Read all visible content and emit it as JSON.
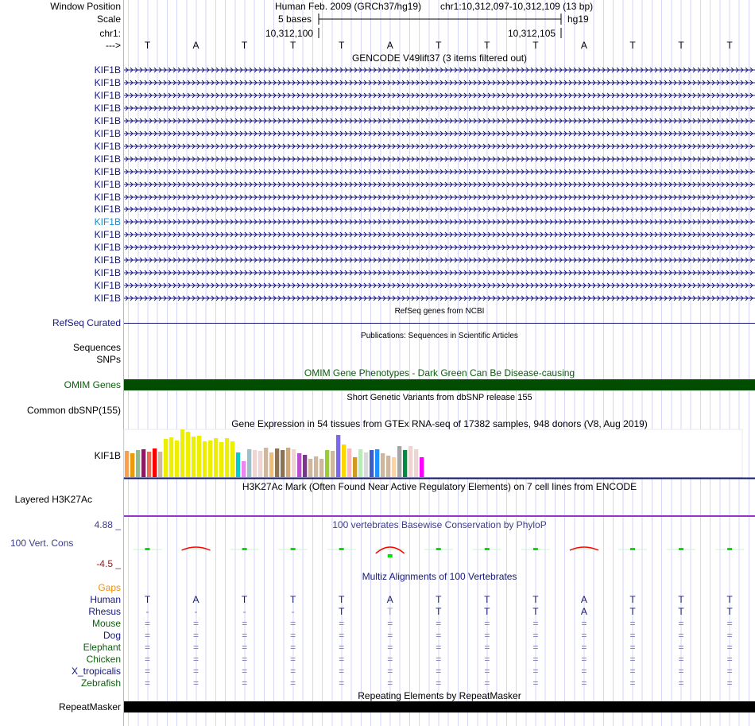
{
  "header": {
    "window_position_label": "Window Position",
    "assembly": "Human Feb. 2009 (GRCh37/hg19)",
    "position": "chr1:10,312,097-10,312,109 (13 bp)",
    "scale_label": "Scale",
    "scale_value": "5 bases",
    "scale_db": "hg19",
    "chrom_label": "chr1:",
    "tick_left": "10,312,100",
    "tick_right": "10,312,105",
    "strand_label": "--->",
    "bases": [
      "T",
      "A",
      "T",
      "T",
      "T",
      "A",
      "T",
      "T",
      "T",
      "A",
      "T",
      "T",
      "T"
    ]
  },
  "gencode": {
    "title": "GENCODE V49lift37 (3 items filtered out)",
    "genes": [
      "KIF1B",
      "KIF1B",
      "KIF1B",
      "KIF1B",
      "KIF1B",
      "KIF1B",
      "KIF1B",
      "KIF1B",
      "KIF1B",
      "KIF1B",
      "KIF1B",
      "KIF1B",
      "KIF1B",
      "KIF1B",
      "KIF1B",
      "KIF1B",
      "KIF1B",
      "KIF1B",
      "KIF1B"
    ],
    "highlighted_index": 12
  },
  "refseq": {
    "title": "RefSeq genes from NCBI",
    "label": "RefSeq Curated"
  },
  "publications": {
    "title": "Publications: Sequences in Scientific Articles",
    "label1": "Sequences",
    "label2": "SNPs"
  },
  "omim": {
    "title": "OMIM Gene Phenotypes - Dark Green Can Be Disease-causing",
    "label": "OMIM Genes",
    "color": "#004d00"
  },
  "dbsnp": {
    "title": "Short Genetic Variants from dbSNP release 155",
    "label": "Common dbSNP(155)"
  },
  "gtex": {
    "title": "Gene Expression in 54 tissues from GTEx RNA-seq of 17382 samples, 948 donors (V8, Aug 2019)",
    "label": "KIF1B",
    "values": [
      33,
      30,
      34,
      35,
      32,
      36,
      32,
      48,
      50,
      46,
      60,
      57,
      51,
      52,
      45,
      46,
      49,
      44,
      49,
      45,
      31,
      20,
      35,
      34,
      33,
      37,
      31,
      36,
      34,
      37,
      35,
      30,
      28,
      23,
      26,
      23,
      34,
      33,
      53,
      41,
      36,
      25,
      35,
      31,
      34,
      35,
      30,
      27,
      25,
      39,
      34,
      39,
      35,
      25
    ],
    "colors": [
      "#ff9e4a",
      "#eb9a0c",
      "#8fbc8f",
      "#8b1c62",
      "#ee6a50",
      "#ff0000",
      "#cdb79e",
      "#eeee00",
      "#eeee00",
      "#eeee00",
      "#eeee00",
      "#eeee00",
      "#eeee00",
      "#eeee00",
      "#eeee00",
      "#eeee00",
      "#eeee00",
      "#eeee00",
      "#eeee00",
      "#eeee00",
      "#00cdcd",
      "#ee82ee",
      "#9ac0cd",
      "#eed5d2",
      "#eed5d2",
      "#cdb79e",
      "#eebe78",
      "#8b7355",
      "#8b7355",
      "#cdaa7d",
      "#eed5d2",
      "#b452cd",
      "#7a378b",
      "#cdb79e",
      "#cdb79e",
      "#cdb79e",
      "#9acd32",
      "#cdb79e",
      "#7b68ee",
      "#ffd700",
      "#ffb6c1",
      "#cd9b1d",
      "#b4eeb4",
      "#d9d9d9",
      "#3a5fcd",
      "#1e90ff",
      "#cdb79e",
      "#cdb79e",
      "#ffd39b",
      "#a6a6a6",
      "#008b45",
      "#eed5d2",
      "#eed5d2",
      "#ff00ff"
    ]
  },
  "h3k27ac": {
    "title": "H3K27Ac Mark (Often Found Near Active Regulatory Elements) on 7 cell lines from ENCODE",
    "label": "Layered H3K27Ac"
  },
  "phylop": {
    "title": "100 vertebrates Basewise Conservation by PhyloP",
    "label": "100 Vert. Cons",
    "max": "4.88 _",
    "min": "-4.5 _"
  },
  "multiz": {
    "title": "Multiz Alignments of 100 Vertebrates",
    "gaps_label": "Gaps",
    "species": [
      {
        "name": "Human",
        "color": "#16187a",
        "bases": [
          "T",
          "A",
          "T",
          "T",
          "T",
          "A",
          "T",
          "T",
          "T",
          "A",
          "T",
          "T",
          "T"
        ]
      },
      {
        "name": "Rhesus",
        "color": "#16187a",
        "bases": [
          "-",
          "-",
          "-",
          "-",
          "T",
          "T",
          "T",
          "T",
          "T",
          "A",
          "T",
          "T",
          "T"
        ]
      },
      {
        "name": "Mouse",
        "color": "#0c5e0c",
        "bases": [
          "=",
          "=",
          "=",
          "=",
          "=",
          "=",
          "=",
          "=",
          "=",
          "=",
          "=",
          "=",
          "="
        ]
      },
      {
        "name": "Dog",
        "color": "#16187a",
        "bases": [
          "=",
          "=",
          "=",
          "=",
          "=",
          "=",
          "=",
          "=",
          "=",
          "=",
          "=",
          "=",
          "="
        ]
      },
      {
        "name": "Elephant",
        "color": "#0c5e0c",
        "bases": [
          "=",
          "=",
          "=",
          "=",
          "=",
          "=",
          "=",
          "=",
          "=",
          "=",
          "=",
          "=",
          "="
        ]
      },
      {
        "name": "Chicken",
        "color": "#0c5e0c",
        "bases": [
          "=",
          "=",
          "=",
          "=",
          "=",
          "=",
          "=",
          "=",
          "=",
          "=",
          "=",
          "=",
          "="
        ]
      },
      {
        "name": "X_tropicalis",
        "color": "#16187a",
        "bases": [
          "=",
          "=",
          "=",
          "=",
          "=",
          "=",
          "=",
          "=",
          "=",
          "=",
          "=",
          "=",
          "="
        ]
      },
      {
        "name": "Zebrafish",
        "color": "#0c5e0c",
        "bases": [
          "=",
          "=",
          "=",
          "=",
          "=",
          "=",
          "=",
          "=",
          "=",
          "=",
          "=",
          "=",
          "="
        ]
      }
    ]
  },
  "repeatmasker": {
    "title": "Repeating Elements by RepeatMasker",
    "label": "RepeatMasker"
  }
}
